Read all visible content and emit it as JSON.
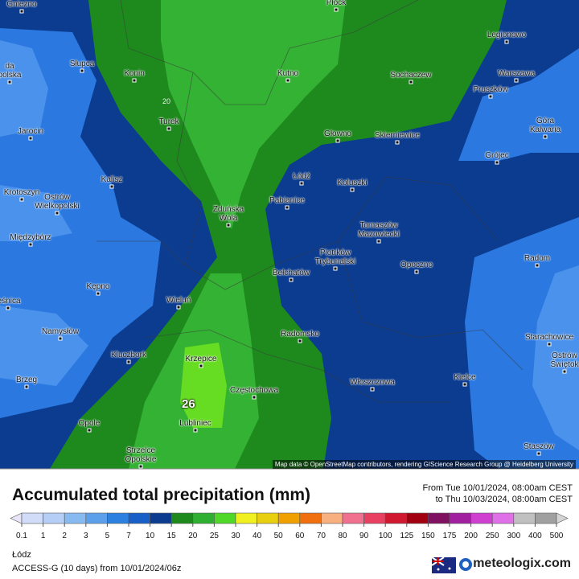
{
  "map": {
    "cities": [
      {
        "name": "Gniezno"
      },
      {
        "name": "Płock"
      },
      {
        "name": "Legionowo"
      },
      {
        "name": "Słupca"
      },
      {
        "name": "da\npolska"
      },
      {
        "name": "Konin"
      },
      {
        "name": "Kutno"
      },
      {
        "name": "Sochaczew"
      },
      {
        "name": "Warszawa"
      },
      {
        "name": "Pruszków"
      },
      {
        "name": "Jarocin"
      },
      {
        "name": "Turek"
      },
      {
        "name": "Głowno"
      },
      {
        "name": "Skierniewice"
      },
      {
        "name": "Góra Kalwaria"
      },
      {
        "name": "Łódź"
      },
      {
        "name": "Grójec"
      },
      {
        "name": "Kalisz"
      },
      {
        "name": "Koluszki"
      },
      {
        "name": "Krotoszyn"
      },
      {
        "name": "Ostrów\nWielkopolski"
      },
      {
        "name": "Zduńska\nWola"
      },
      {
        "name": "Pabianice"
      },
      {
        "name": "Tomaszów\nMazowiecki"
      },
      {
        "name": "Międzybórz"
      },
      {
        "name": "Piotrków\nTrybunalski"
      },
      {
        "name": "Opoczno"
      },
      {
        "name": "Radom"
      },
      {
        "name": "Bełchatów"
      },
      {
        "name": "Kępno"
      },
      {
        "name": "leśnica"
      },
      {
        "name": "Wieluń"
      },
      {
        "name": "Namysłów"
      },
      {
        "name": "Radomsko"
      },
      {
        "name": "Starachowice"
      },
      {
        "name": "Ostrów\nŚwiętok"
      },
      {
        "name": "Kluczbork"
      },
      {
        "name": "Krzepice"
      },
      {
        "name": "Kielce"
      },
      {
        "name": "Brzeg"
      },
      {
        "name": "Włoszczowa"
      },
      {
        "name": "Częstochowa"
      },
      {
        "name": "Opole"
      },
      {
        "name": "Lubliniec"
      },
      {
        "name": "Staszów"
      },
      {
        "name": "Strzelce\nOpolskie"
      }
    ],
    "contour_labels": [
      "20",
      "26"
    ],
    "attribution": "Map data © OpenStreetMap contributors, rendering GIScience Research Group @ Heidelberg University"
  },
  "legend": {
    "title": "Accumulated total precipitation (mm)",
    "period_from": "From Tue 10/01/2024, 08:00am CEST",
    "period_to": "to Thu 10/03/2024, 08:00am CEST",
    "labels": [
      0.1,
      1,
      2,
      3,
      5,
      7,
      10,
      15,
      20,
      25,
      30,
      40,
      50,
      60,
      70,
      80,
      90,
      100,
      125,
      150,
      175,
      200,
      250,
      300,
      400,
      500
    ],
    "colors": [
      "#e6e6f8",
      "#d0dcf8",
      "#b4cef6",
      "#88baf2",
      "#5ca0ec",
      "#2c80e0",
      "#1860c8",
      "#0c3c90",
      "#1e8a1e",
      "#30b030",
      "#50d828",
      "#f0f020",
      "#e8d010",
      "#f0a000",
      "#f07010",
      "#f8b080",
      "#f07090",
      "#e84060",
      "#d01830",
      "#a00010",
      "#801060",
      "#a020a0",
      "#d040d0",
      "#e070e8",
      "#c0c0c0",
      "#a0a0a0",
      "#d4d4d4"
    ]
  },
  "footer": {
    "location": "Łódz",
    "model": "ACCESS-G (10 days) from 10/01/2024/06z",
    "brand": "meteologix.com"
  }
}
